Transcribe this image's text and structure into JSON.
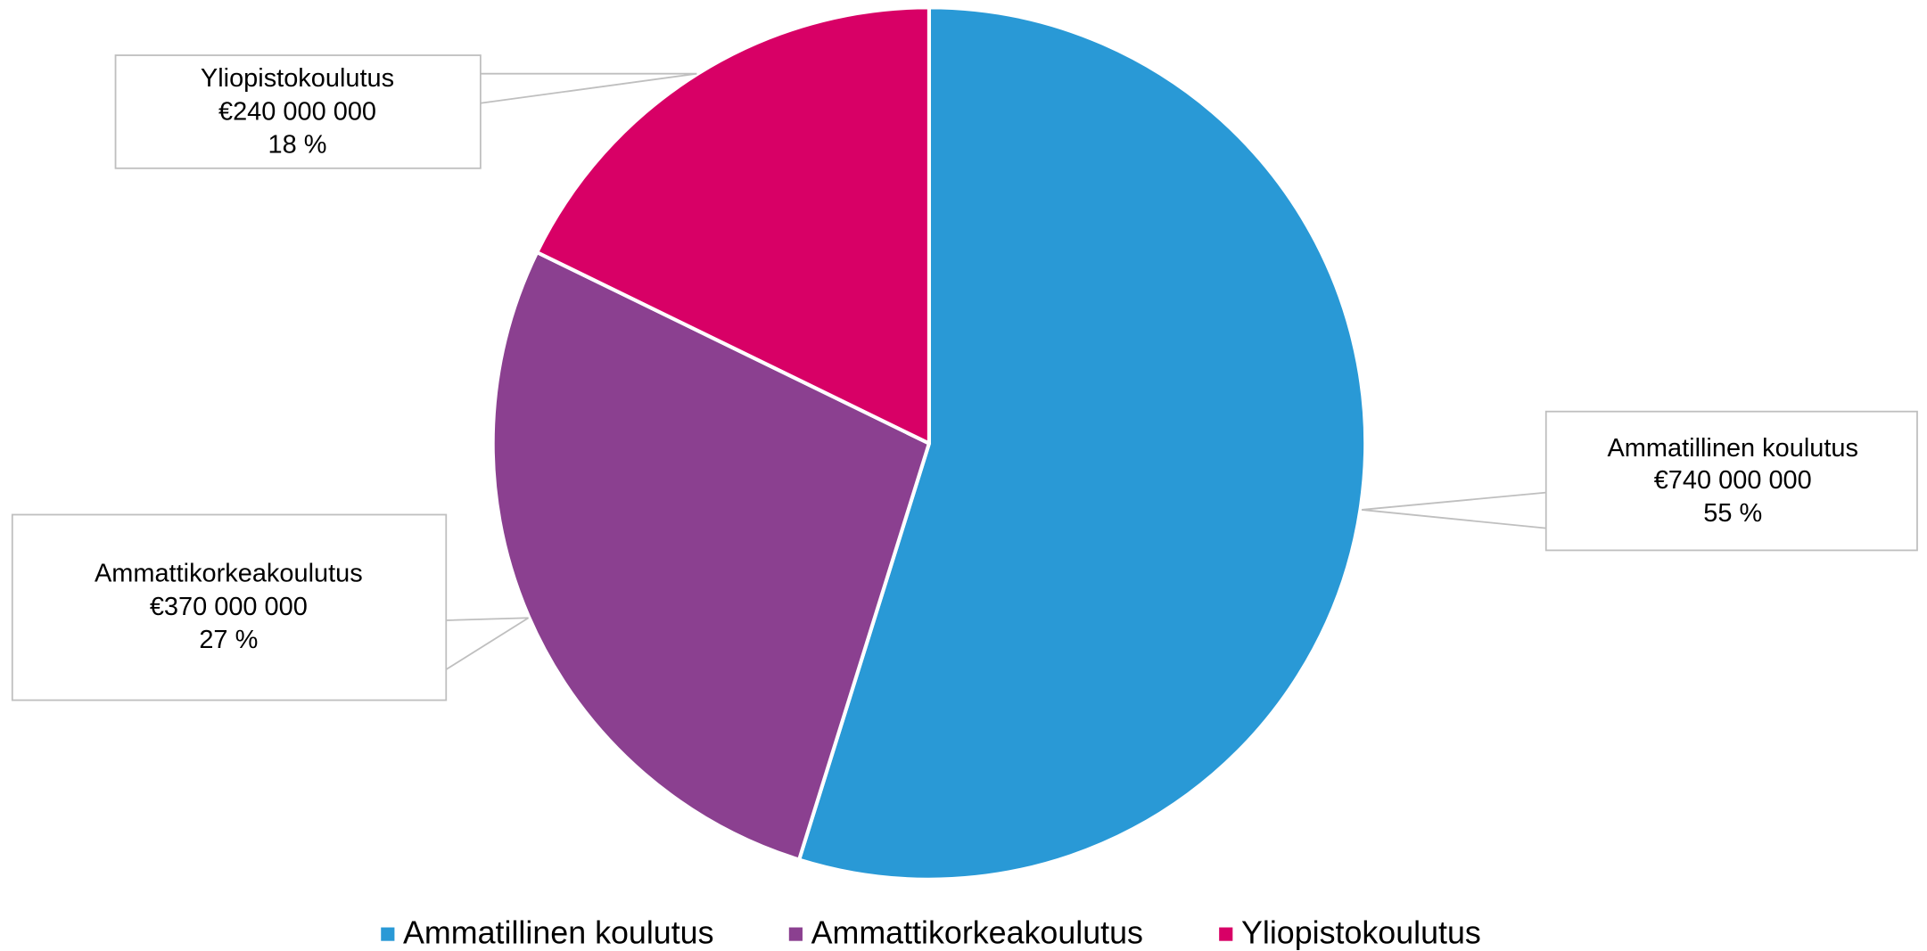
{
  "chart_data": {
    "type": "pie",
    "categories": [
      "Ammatillinen koulutus",
      "Ammattikorkeakoulutus",
      "Yliopistokoulutus"
    ],
    "values": [
      740000000,
      370000000,
      240000000
    ],
    "value_labels": [
      "€740 000 000",
      "€370 000 000",
      "€240 000 000"
    ],
    "percentages": [
      55,
      27,
      18
    ],
    "percentage_labels": [
      "55 %",
      "27 %",
      "18 %"
    ],
    "colors": [
      "#2999d6",
      "#8b4090",
      "#d80066"
    ],
    "legend": "bottom"
  }
}
